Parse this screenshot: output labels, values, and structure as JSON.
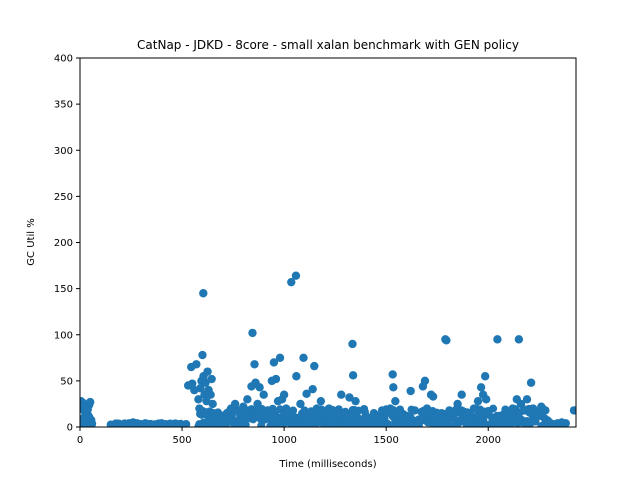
{
  "chart_data": {
    "type": "scatter",
    "title": "CatNap - JDKD - 8core -  small xalan benchmark with GEN policy",
    "xlabel": "Time (milliseconds)",
    "ylabel": "GC Util %",
    "xlim": [
      0,
      2430
    ],
    "ylim": [
      0,
      400
    ],
    "xticks": [
      0,
      500,
      1000,
      1500,
      2000
    ],
    "yticks": [
      0,
      50,
      100,
      150,
      200,
      250,
      300,
      350,
      400
    ],
    "grid": false,
    "legend": "none",
    "marker_color": "#1f77b4",
    "series": [
      {
        "points": [
          [
            5,
            28
          ],
          [
            10,
            22
          ],
          [
            15,
            26
          ],
          [
            20,
            18
          ],
          [
            25,
            12
          ],
          [
            30,
            20
          ],
          [
            35,
            15
          ],
          [
            40,
            10
          ],
          [
            45,
            24
          ],
          [
            50,
            27
          ],
          [
            8,
            8
          ],
          [
            18,
            5
          ],
          [
            28,
            14
          ],
          [
            38,
            19
          ],
          [
            160,
            1
          ],
          [
            180,
            2
          ],
          [
            200,
            2
          ],
          [
            220,
            3
          ],
          [
            240,
            4
          ],
          [
            260,
            5
          ],
          [
            280,
            4
          ],
          [
            300,
            3
          ],
          [
            320,
            4
          ],
          [
            340,
            3
          ],
          [
            360,
            2
          ],
          [
            380,
            3
          ],
          [
            400,
            4
          ],
          [
            420,
            3
          ],
          [
            440,
            2
          ],
          [
            460,
            3
          ],
          [
            480,
            2
          ],
          [
            500,
            2
          ],
          [
            520,
            3
          ],
          [
            530,
            45
          ],
          [
            545,
            65
          ],
          [
            550,
            47
          ],
          [
            560,
            40
          ],
          [
            570,
            68
          ],
          [
            580,
            30
          ],
          [
            585,
            20
          ],
          [
            590,
            42
          ],
          [
            595,
            50
          ],
          [
            600,
            78
          ],
          [
            605,
            55
          ],
          [
            610,
            35
          ],
          [
            615,
            48
          ],
          [
            620,
            28
          ],
          [
            625,
            60
          ],
          [
            630,
            40
          ],
          [
            640,
            35
          ],
          [
            645,
            52
          ],
          [
            650,
            25
          ],
          [
            655,
            15
          ],
          [
            660,
            10
          ],
          [
            604,
            145
          ],
          [
            680,
            12
          ],
          [
            700,
            8
          ],
          [
            720,
            15
          ],
          [
            740,
            20
          ],
          [
            760,
            25
          ],
          [
            780,
            18
          ],
          [
            800,
            22
          ],
          [
            820,
            30
          ],
          [
            840,
            44
          ],
          [
            845,
            102
          ],
          [
            855,
            68
          ],
          [
            860,
            48
          ],
          [
            870,
            25
          ],
          [
            880,
            43
          ],
          [
            900,
            35
          ],
          [
            920,
            18
          ],
          [
            940,
            50
          ],
          [
            950,
            70
          ],
          [
            960,
            52
          ],
          [
            970,
            28
          ],
          [
            980,
            75
          ],
          [
            990,
            30
          ],
          [
            1000,
            35
          ],
          [
            1010,
            20
          ],
          [
            1020,
            15
          ],
          [
            1035,
            157
          ],
          [
            1058,
            164
          ],
          [
            1060,
            55
          ],
          [
            1080,
            25
          ],
          [
            1095,
            75
          ],
          [
            1110,
            36
          ],
          [
            1120,
            10
          ],
          [
            1140,
            41
          ],
          [
            1148,
            66
          ],
          [
            1160,
            20
          ],
          [
            1180,
            28
          ],
          [
            1200,
            15
          ],
          [
            1220,
            20
          ],
          [
            1240,
            18
          ],
          [
            1260,
            15
          ],
          [
            1280,
            35
          ],
          [
            1300,
            12
          ],
          [
            1320,
            32
          ],
          [
            1335,
            90
          ],
          [
            1338,
            56
          ],
          [
            1350,
            28
          ],
          [
            1360,
            10
          ],
          [
            1400,
            12
          ],
          [
            1420,
            8
          ],
          [
            1440,
            15
          ],
          [
            1460,
            10
          ],
          [
            1480,
            18
          ],
          [
            1500,
            15
          ],
          [
            1520,
            20
          ],
          [
            1532,
            57
          ],
          [
            1535,
            43
          ],
          [
            1545,
            28
          ],
          [
            1560,
            15
          ],
          [
            1580,
            10
          ],
          [
            1600,
            12
          ],
          [
            1620,
            39
          ],
          [
            1640,
            18
          ],
          [
            1660,
            8
          ],
          [
            1680,
            44
          ],
          [
            1690,
            50
          ],
          [
            1700,
            20
          ],
          [
            1720,
            35
          ],
          [
            1730,
            33
          ],
          [
            1750,
            15
          ],
          [
            1770,
            10
          ],
          [
            1790,
            95
          ],
          [
            1795,
            94
          ],
          [
            1810,
            18
          ],
          [
            1830,
            12
          ],
          [
            1850,
            25
          ],
          [
            1870,
            35
          ],
          [
            1890,
            10
          ],
          [
            1910,
            15
          ],
          [
            1930,
            20
          ],
          [
            1950,
            28
          ],
          [
            1965,
            43
          ],
          [
            1975,
            35
          ],
          [
            1985,
            55
          ],
          [
            1990,
            30
          ],
          [
            2000,
            15
          ],
          [
            2020,
            10
          ],
          [
            2045,
            95
          ],
          [
            2060,
            12
          ],
          [
            2080,
            8
          ],
          [
            2100,
            15
          ],
          [
            2120,
            20
          ],
          [
            2140,
            30
          ],
          [
            2150,
            95
          ],
          [
            2160,
            25
          ],
          [
            2175,
            18
          ],
          [
            2190,
            30
          ],
          [
            2210,
            48
          ],
          [
            2220,
            20
          ],
          [
            2240,
            15
          ],
          [
            2260,
            22
          ],
          [
            2280,
            18
          ],
          [
            2300,
            5
          ],
          [
            2320,
            3
          ],
          [
            2340,
            4
          ],
          [
            2360,
            5
          ],
          [
            2380,
            4
          ],
          [
            2420,
            18
          ]
        ]
      }
    ],
    "baseline_band": [
      {
        "x_start": 0,
        "x_end": 60,
        "y_max": 15
      },
      {
        "x_start": 150,
        "x_end": 500,
        "y_max": 4
      },
      {
        "x_start": 580,
        "x_end": 2300,
        "y_max": 20
      }
    ]
  }
}
